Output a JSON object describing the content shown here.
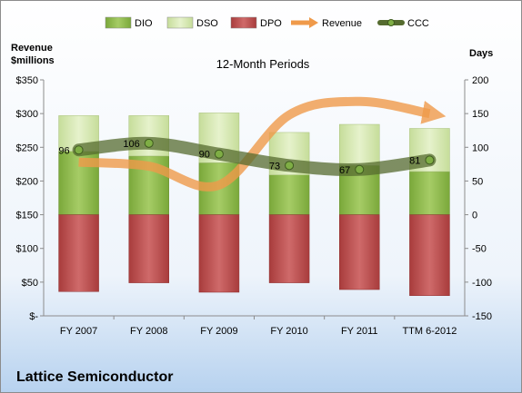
{
  "company": "Lattice Semiconductor",
  "chart_data": {
    "type": "bar",
    "title": "12-Month Periods",
    "y_left_label": [
      "Revenue",
      "$millions"
    ],
    "y_right_label": "Days",
    "y_left_ticks": [
      "$-",
      "$50",
      "$100",
      "$150",
      "$200",
      "$250",
      "$300",
      "$350"
    ],
    "y_right_ticks": [
      "-150",
      "-100",
      "-50",
      "0",
      "50",
      "100",
      "150",
      "200"
    ],
    "ylim_left": [
      0,
      350
    ],
    "ylim_right": [
      -150,
      200
    ],
    "categories": [
      "FY 2007",
      "FY 2008",
      "FY 2009",
      "FY 2010",
      "FY 2011",
      "TTM 6-2012"
    ],
    "legend": [
      "DIO",
      "DSO",
      "DPO",
      "Revenue",
      "CCC"
    ],
    "legend_position": "top",
    "colors": {
      "DIO": "#8cb84a",
      "DSO": "#d6e8b2",
      "DPO": "#b84a4a",
      "Revenue": "#ef9a4a",
      "CCC": "#556b2f"
    },
    "series": [
      {
        "name": "DIO",
        "axis": "right",
        "values": [
          94,
          87,
          77,
          59,
          73,
          64
        ]
      },
      {
        "name": "DSO",
        "axis": "right",
        "values": [
          53,
          60,
          74,
          63,
          61,
          64
        ]
      },
      {
        "name": "DPO",
        "axis": "right",
        "values": [
          -114,
          -101,
          -115,
          -101,
          -111,
          -120
        ]
      },
      {
        "name": "Revenue",
        "axis": "left",
        "values": [
          228,
          222,
          194,
          298,
          318,
          300
        ]
      },
      {
        "name": "CCC",
        "axis": "right",
        "values": [
          96,
          106,
          90,
          73,
          67,
          81
        ]
      }
    ],
    "ccc_labels": [
      "96",
      "106",
      "90",
      "73",
      "67",
      "81"
    ]
  }
}
